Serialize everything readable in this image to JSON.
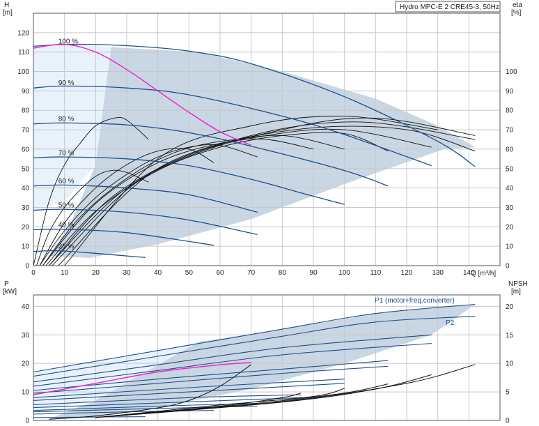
{
  "chart_data": [
    {
      "type": "line",
      "title": "Hydro MPC-E 2 CRE45-3, 50Hz",
      "y_label_left": "H",
      "y_unit_left": "[m]",
      "y_label_right": "eta",
      "y_unit_right": "[%]",
      "x_label": "Q [m³/h]",
      "xlim": [
        0,
        150
      ],
      "ylim": [
        0,
        130
      ],
      "eta_lim": [
        0,
        130
      ],
      "x_ticks": [
        0,
        10,
        20,
        30,
        40,
        50,
        60,
        70,
        80,
        90,
        100,
        110,
        120,
        130,
        140
      ],
      "y_ticks": [
        0,
        10,
        20,
        30,
        40,
        50,
        60,
        70,
        80,
        90,
        100,
        110,
        120
      ],
      "eta_ticks": [
        0,
        10,
        20,
        30,
        40,
        50,
        60,
        70,
        80,
        90,
        100
      ],
      "grid": true,
      "region_light": [
        [
          0,
          113
        ],
        [
          12,
          114
        ],
        [
          25,
          112.5
        ],
        [
          53,
          110
        ],
        [
          20,
          52
        ],
        [
          10,
          33
        ],
        [
          0,
          28
        ]
      ],
      "region_dark": [
        [
          25,
          112.5
        ],
        [
          53,
          110
        ],
        [
          80,
          100
        ],
        [
          110,
          86
        ],
        [
          130,
          72
        ],
        [
          142,
          61
        ],
        [
          132,
          60
        ],
        [
          100,
          42
        ],
        [
          70,
          24
        ],
        [
          40,
          11
        ],
        [
          18,
          4
        ],
        [
          5,
          5
        ],
        [
          12,
          22
        ],
        [
          20,
          52
        ]
      ],
      "speed_curves": [
        {
          "label": "100 %",
          "x": [
            0,
            12,
            30,
            50,
            70,
            100,
            130,
            142
          ],
          "y": [
            113,
            114,
            113.3,
            110.5,
            104,
            87,
            64,
            51
          ]
        },
        {
          "label": "90 %",
          "x": [
            0,
            10,
            30,
            50,
            80,
            100,
            128
          ],
          "y": [
            91.5,
            92.5,
            91.5,
            88,
            77,
            67.5,
            51.5
          ]
        },
        {
          "label": "80 %",
          "x": [
            0,
            10,
            30,
            50,
            70,
            100,
            114
          ],
          "y": [
            73,
            73.5,
            72.5,
            68.5,
            61.5,
            49,
            41
          ]
        },
        {
          "label": "70 %",
          "x": [
            0,
            10,
            30,
            50,
            70,
            86,
            100
          ],
          "y": [
            55.5,
            56,
            55,
            51.5,
            44.5,
            37.5,
            31.5
          ]
        },
        {
          "label": "60 %",
          "x": [
            0,
            10,
            30,
            50,
            72
          ],
          "y": [
            41,
            41.5,
            40,
            36.5,
            27.5
          ]
        },
        {
          "label": "50 %",
          "x": [
            0,
            10,
            30,
            50,
            72
          ],
          "y": [
            28.5,
            29,
            27.5,
            23.5,
            16
          ]
        },
        {
          "label": "40 %",
          "x": [
            0,
            10,
            30,
            58
          ],
          "y": [
            18.5,
            18.7,
            17,
            10.5
          ]
        },
        {
          "label": "25 %",
          "x": [
            0,
            10,
            36
          ],
          "y": [
            7.3,
            7.5,
            4.2
          ]
        }
      ],
      "eff_pink": {
        "x": [
          0,
          10,
          20,
          30,
          40,
          50,
          60,
          70
        ],
        "y": [
          112,
          114,
          110,
          101,
          90,
          79,
          69,
          62
        ]
      },
      "eta_curves": [
        {
          "x": [
            0,
            5,
            10,
            15,
            20,
            26,
            30,
            37
          ],
          "y": [
            0,
            33,
            52,
            63,
            72,
            76,
            75,
            65
          ]
        },
        {
          "x": [
            1,
            5,
            10,
            15,
            20,
            25,
            30,
            37
          ],
          "y": [
            0,
            17,
            30,
            39,
            46,
            49,
            48,
            43
          ]
        },
        {
          "x": [
            2,
            10,
            20,
            30,
            40,
            50,
            58
          ],
          "y": [
            0,
            22,
            40,
            52,
            59,
            60,
            53
          ]
        },
        {
          "x": [
            2,
            10,
            20,
            30,
            40,
            50,
            60,
            72
          ],
          "y": [
            0,
            18,
            35,
            47,
            56,
            61,
            62,
            56
          ]
        },
        {
          "x": [
            3,
            15,
            30,
            45,
            60,
            75,
            90
          ],
          "y": [
            0,
            25,
            45,
            58,
            64,
            65,
            60
          ]
        },
        {
          "x": [
            3,
            20,
            40,
            60,
            80,
            100
          ],
          "y": [
            0,
            32,
            53,
            63,
            67,
            60
          ]
        },
        {
          "x": [
            4,
            20,
            40,
            60,
            80,
            100,
            114
          ],
          "y": [
            0,
            28,
            49,
            61,
            67,
            68,
            59
          ]
        },
        {
          "x": [
            5,
            25,
            50,
            75,
            100,
            128
          ],
          "y": [
            0,
            35,
            57,
            67,
            70,
            61
          ]
        },
        {
          "x": [
            5,
            30,
            60,
            90,
            120,
            142
          ],
          "y": [
            0,
            40,
            62,
            71,
            70,
            59
          ]
        },
        {
          "x": [
            6,
            35,
            70,
            105,
            142
          ],
          "y": [
            0,
            45,
            67,
            74,
            65
          ]
        },
        {
          "x": [
            8,
            40,
            80,
            110,
            142
          ],
          "y": [
            0,
            50,
            70,
            76,
            67
          ]
        },
        {
          "x": [
            10,
            40,
            70,
            100,
            130
          ],
          "y": [
            0,
            55,
            72,
            77,
            70
          ]
        }
      ]
    },
    {
      "type": "line",
      "y_label_left": "P",
      "y_unit_left": "[kW]",
      "y_label_right": "NPSH",
      "y_unit_right": "[m]",
      "xlim": [
        0,
        150
      ],
      "ylim": [
        0,
        44
      ],
      "npsh_lim": [
        0,
        22
      ],
      "y_ticks": [
        0,
        10,
        20,
        30,
        40
      ],
      "npsh_ticks": [
        0,
        5,
        10,
        15,
        20
      ],
      "grid": true,
      "legend_p1": "P1 (motor+freq.converter)",
      "legend_p2": "P2",
      "region_light": [
        [
          0,
          17
        ],
        [
          20,
          21
        ],
        [
          40,
          24.5
        ],
        [
          53,
          27.5
        ],
        [
          20,
          7
        ],
        [
          0,
          3
        ]
      ],
      "region_dark": [
        [
          53,
          27.5
        ],
        [
          80,
          32
        ],
        [
          110,
          37.5
        ],
        [
          142,
          40.7
        ],
        [
          128,
          30
        ],
        [
          100,
          20
        ],
        [
          70,
          11
        ],
        [
          40,
          4.5
        ],
        [
          20,
          1
        ],
        [
          5,
          0.5
        ],
        [
          20,
          7
        ]
      ],
      "p_curves": [
        {
          "x": [
            0,
            40,
            80,
            110,
            142
          ],
          "y": [
            17,
            24.5,
            32,
            37.5,
            40.7
          ]
        },
        {
          "x": [
            0,
            40,
            80,
            110,
            142
          ],
          "y": [
            15.5,
            22.5,
            29.5,
            34.5,
            36.5
          ]
        },
        {
          "x": [
            0,
            40,
            80,
            128
          ],
          "y": [
            13.5,
            19.5,
            25.5,
            30
          ]
        },
        {
          "x": [
            0,
            40,
            80,
            128
          ],
          "y": [
            12,
            17.5,
            23,
            27
          ]
        },
        {
          "x": [
            0,
            40,
            80,
            114
          ],
          "y": [
            10.5,
            14.5,
            18,
            21
          ]
        },
        {
          "x": [
            0,
            40,
            80,
            114
          ],
          "y": [
            9.5,
            13,
            16.5,
            19
          ]
        },
        {
          "x": [
            0,
            50,
            100
          ],
          "y": [
            8,
            11.5,
            14.5
          ]
        },
        {
          "x": [
            0,
            50,
            100
          ],
          "y": [
            7,
            10,
            13
          ]
        },
        {
          "x": [
            0,
            50,
            86
          ],
          "y": [
            5.5,
            8,
            9
          ]
        },
        {
          "x": [
            0,
            50,
            86
          ],
          "y": [
            4.5,
            6.5,
            8
          ]
        },
        {
          "x": [
            0,
            40,
            72
          ],
          "y": [
            3.5,
            5,
            6
          ]
        },
        {
          "x": [
            0,
            40,
            72
          ],
          "y": [
            3,
            4.2,
            5
          ]
        },
        {
          "x": [
            0,
            30,
            58
          ],
          "y": [
            2.2,
            3,
            3.5
          ]
        },
        {
          "x": [
            0,
            20,
            36
          ],
          "y": [
            1,
            1.2,
            1.3
          ]
        }
      ],
      "p_pink": {
        "x": [
          0,
          20,
          40,
          60,
          70
        ],
        "y": [
          9,
          13,
          17,
          19.5,
          20.3
        ]
      },
      "npsh_curves": [
        {
          "x": [
            5,
            20,
            40,
            50,
            60,
            70
          ],
          "y": [
            0.2,
            0.8,
            2.2,
            3.5,
            6,
            9.8
          ]
        },
        {
          "x": [
            20,
            60,
            80,
            86
          ],
          "y": [
            0.5,
            2.5,
            4,
            4.8
          ]
        },
        {
          "x": [
            20,
            60,
            90,
            100
          ],
          "y": [
            0.5,
            2.7,
            4.2,
            5.6
          ]
        },
        {
          "x": [
            20,
            70,
            100,
            114
          ],
          "y": [
            0.5,
            2.9,
            4.8,
            6.4
          ]
        },
        {
          "x": [
            20,
            80,
            110,
            128
          ],
          "y": [
            0.5,
            3.2,
            5.5,
            8
          ]
        },
        {
          "x": [
            20,
            80,
            120,
            142
          ],
          "y": [
            0.5,
            3.3,
            6.5,
            9.8
          ]
        }
      ]
    }
  ],
  "speed_labels": [
    "100 %",
    "90 %",
    "80 %",
    "70 %",
    "60 %",
    "50 %",
    "40 %",
    "25 %"
  ],
  "colors": {
    "curve": "#1f4e8c",
    "eta": "#111111",
    "pink": "#ee22cc",
    "region_light": "#e8f2fb",
    "region_dark": "#c9d6e3"
  }
}
